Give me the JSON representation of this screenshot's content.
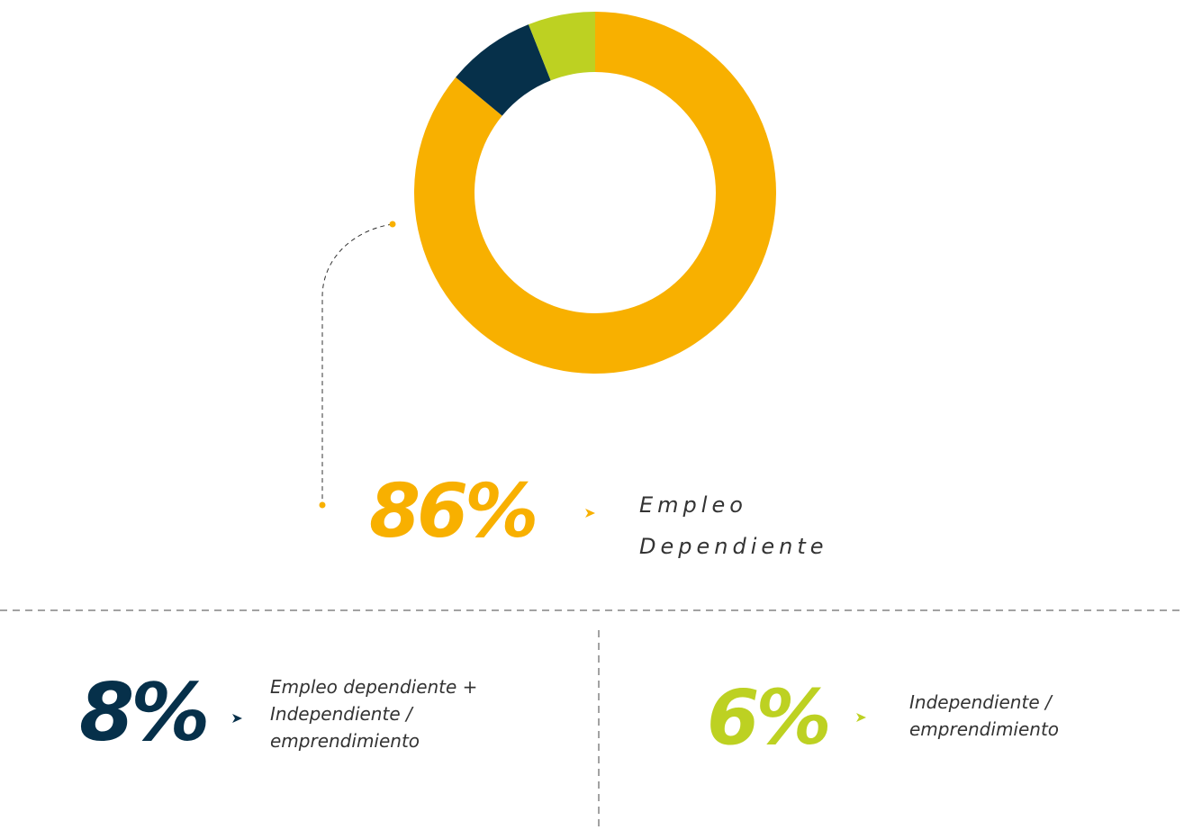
{
  "chart_data": {
    "type": "pie",
    "donut": true,
    "categories": [
      "Empleo Dependiente",
      "Empleo dependiente + Independiente / emprendimiento",
      "Independiente / emprendimiento"
    ],
    "values": [
      86,
      8,
      6
    ],
    "value_labels": [
      "86%",
      "8%",
      "6%"
    ],
    "colors": [
      "#f8b000",
      "#06304a",
      "#bdd122"
    ]
  }
}
